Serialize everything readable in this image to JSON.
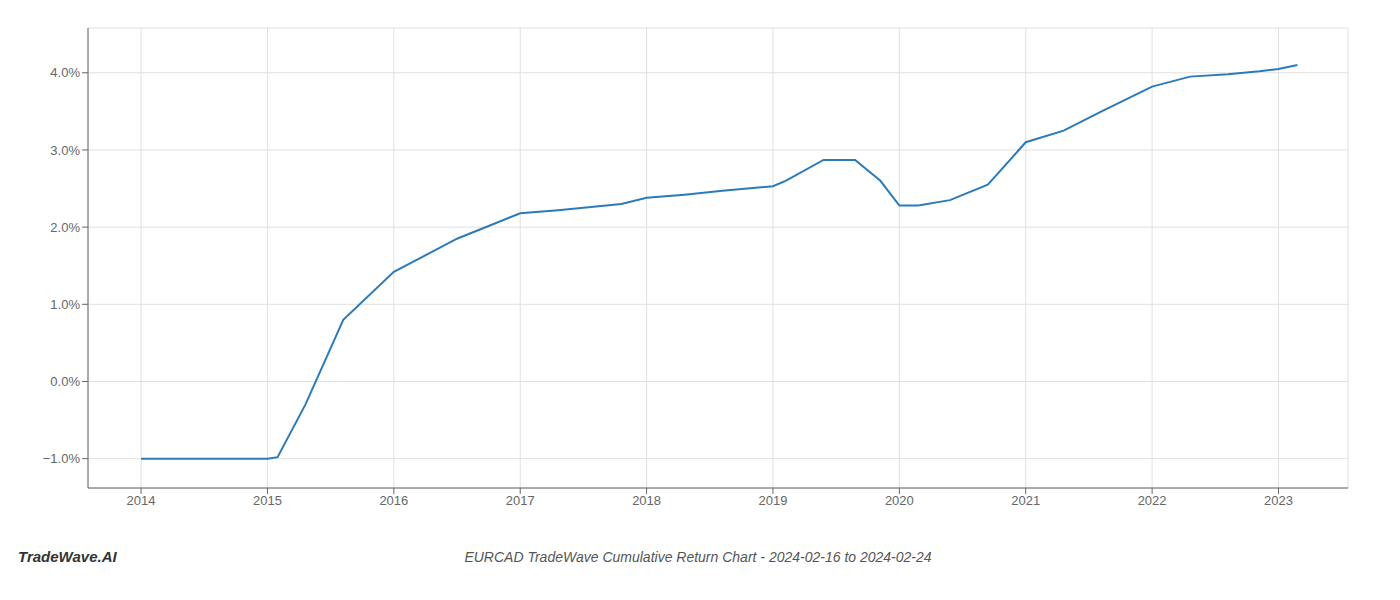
{
  "chart_data": {
    "type": "line",
    "title": "EURCAD TradeWave Cumulative Return Chart - 2024-02-16 to 2024-02-24",
    "annotations": [
      "TradeWave.AI"
    ],
    "x": [
      2014.0,
      2014.5,
      2015.0,
      2015.08,
      2015.3,
      2015.6,
      2016.0,
      2016.5,
      2017.0,
      2017.3,
      2017.8,
      2018.0,
      2018.3,
      2018.6,
      2019.0,
      2019.1,
      2019.4,
      2019.65,
      2019.85,
      2020.0,
      2020.15,
      2020.4,
      2020.7,
      2021.0,
      2021.3,
      2021.6,
      2022.0,
      2022.3,
      2022.6,
      2022.85,
      2023.0,
      2023.15
    ],
    "values": [
      -1.0,
      -1.0,
      -1.0,
      -0.98,
      -0.3,
      0.8,
      1.42,
      1.85,
      2.18,
      2.22,
      2.3,
      2.38,
      2.42,
      2.47,
      2.53,
      2.6,
      2.87,
      2.87,
      2.6,
      2.28,
      2.28,
      2.35,
      2.55,
      3.1,
      3.25,
      3.5,
      3.82,
      3.95,
      3.98,
      4.02,
      4.05,
      4.1
    ],
    "color": "#2b7bba",
    "xlim": [
      2013.58,
      2023.55
    ],
    "ylim": [
      -1.38,
      4.58
    ],
    "xticks": [
      2014,
      2015,
      2016,
      2017,
      2018,
      2019,
      2020,
      2021,
      2022,
      2023
    ],
    "yticks": [
      {
        "value": -1.0,
        "label": "−1.0%"
      },
      {
        "value": 0.0,
        "label": "0.0%"
      },
      {
        "value": 1.0,
        "label": "1.0%"
      },
      {
        "value": 2.0,
        "label": "2.0%"
      },
      {
        "value": 3.0,
        "label": "3.0%"
      },
      {
        "value": 4.0,
        "label": "4.0%"
      }
    ],
    "grid": true
  }
}
